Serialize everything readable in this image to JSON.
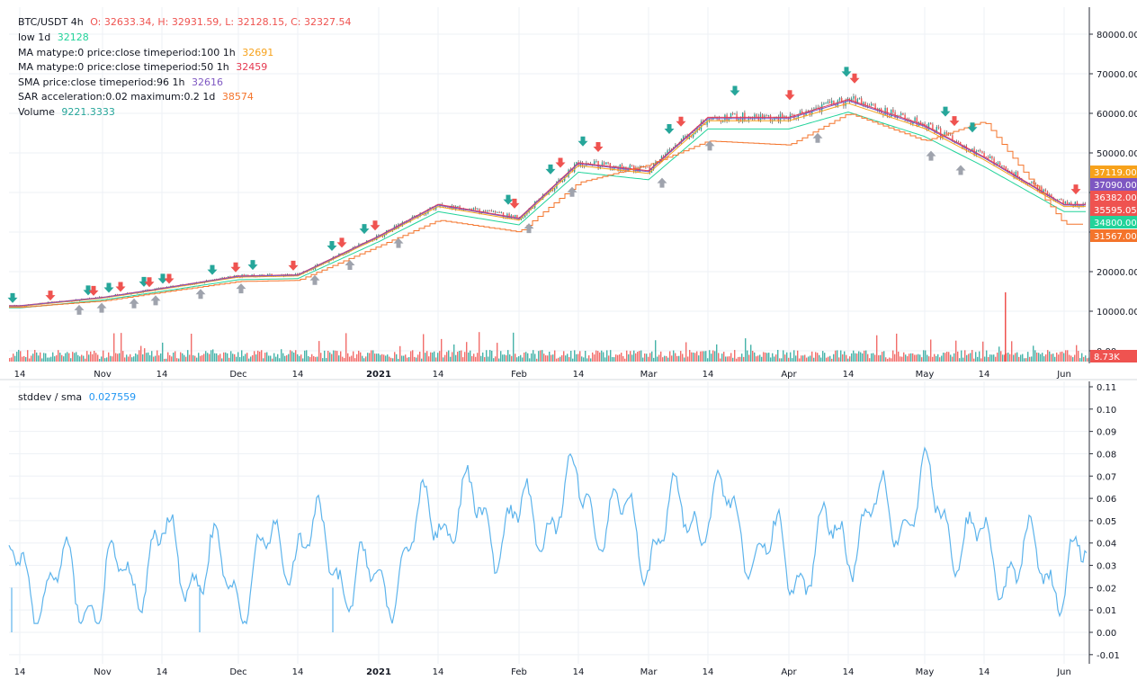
{
  "colors": {
    "up": "#26a69a",
    "down": "#ef5350",
    "low_line": "#22d39a",
    "ma100": "#f7a21b",
    "ma50": "#e53950",
    "sma96": "#7e57c2",
    "sar": "#f4742b",
    "stddev_line": "#5db4ec",
    "grid": "#eef1f5",
    "axis_text": "#131722",
    "axis_line": "#2a2e39",
    "arrow_up": "#9fa3ad"
  },
  "legend": {
    "title": "BTC/USDT 4h",
    "ohlc": "O: 32633.34, H: 32931.59, L: 32128.15, C: 32327.54",
    "low_label": "low 1d",
    "low_value": "32128",
    "ma100_label": "MA matype:0 price:close timeperiod:100 1h",
    "ma100_value": "32691",
    "ma50_label": "MA matype:0 price:close timeperiod:50 1h",
    "ma50_value": "32459",
    "sma_label": "SMA price:close timeperiod:96 1h",
    "sma_value": "32616",
    "sar_label": "SAR acceleration:0.02 maximum:0.2 1d",
    "sar_value": "38574",
    "volume_label": "Volume",
    "volume_value": "9221.3333"
  },
  "lower_legend": {
    "label": "stddev / sma",
    "value": "0.027559"
  },
  "badges": [
    {
      "text": "37119.00",
      "color": "#f7a21b"
    },
    {
      "text": "37090.00",
      "color": "#7e57c2"
    },
    {
      "text": "36382.00",
      "color": "#ef5350"
    },
    {
      "text": "35595.05",
      "color": "#ef5350"
    },
    {
      "text": "34800.00",
      "color": "#22d39a"
    },
    {
      "text": "31567.00",
      "color": "#f4742b"
    },
    {
      "text": "8.73K",
      "color": "#ef5350"
    }
  ],
  "chart_data": [
    {
      "type": "line",
      "title": "BTC/USDT 4h",
      "note": "price (candlestick) with indicator overlays and volume; values approximate",
      "x": [
        "Oct 14",
        "Nov 1",
        "Nov 14",
        "Dec 1",
        "Dec 14",
        "Jan 1",
        "Jan 14",
        "Feb 1",
        "Feb 14",
        "Mar 1",
        "Mar 14",
        "Apr 1",
        "Apr 14",
        "May 1",
        "May 14",
        "Jun 1"
      ],
      "series": [
        {
          "name": "close",
          "values": [
            11400,
            13500,
            15800,
            18900,
            19200,
            29000,
            37000,
            33500,
            47500,
            45500,
            59000,
            59000,
            63500,
            57000,
            49000,
            37000
          ]
        },
        {
          "name": "SAR",
          "values": [
            11000,
            12600,
            14800,
            17500,
            17800,
            26500,
            33000,
            30000,
            42500,
            47000,
            53000,
            52000,
            60000,
            53000,
            58000,
            32000
          ]
        }
      ],
      "y_ticks": [
        "0.00",
        "10000.00",
        "20000.00",
        "30000.00",
        "40000.00",
        "50000.00",
        "60000.00",
        "70000.00",
        "80000.00"
      ],
      "ylim": [
        0,
        85000
      ]
    },
    {
      "type": "line",
      "title": "stddev / sma",
      "x": [
        "Oct 14",
        "Nov 1",
        "Nov 14",
        "Dec 1",
        "Dec 14",
        "Jan 1",
        "Jan 14",
        "Feb 1",
        "Feb 14",
        "Mar 1",
        "Mar 14",
        "Apr 1",
        "Apr 14",
        "May 1",
        "May 14",
        "Jun 1"
      ],
      "series": [
        {
          "name": "stddev / sma",
          "values": [
            0.025,
            0.012,
            0.045,
            0.018,
            0.057,
            0.012,
            0.078,
            0.06,
            0.087,
            0.052,
            0.082,
            0.03,
            0.06,
            0.084,
            0.04,
            0.03
          ]
        }
      ],
      "y_ticks": [
        "-0.01",
        "0.00",
        "0.01",
        "0.02",
        "0.03",
        "0.04",
        "0.05",
        "0.06",
        "0.07",
        "0.08",
        "0.09",
        "0.10",
        "0.11"
      ],
      "ylim": [
        -0.01,
        0.11
      ]
    }
  ],
  "x_labels": [
    "14",
    "Nov",
    "14",
    "Dec",
    "14",
    "2021",
    "14",
    "Feb",
    "14",
    "Mar",
    "14",
    "Apr",
    "14",
    "May",
    "14",
    "Jun"
  ]
}
